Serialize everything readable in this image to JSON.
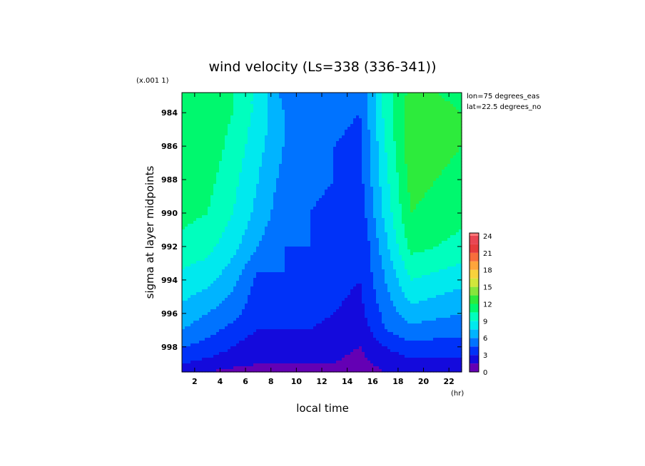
{
  "chart_data": {
    "type": "heatmap",
    "title": "wind velocity (Ls=338 (336-341))",
    "xlabel": "local time",
    "x_unit": "(hr)",
    "ylabel": "sigma at layer midpoints",
    "y_scale_note": "(x.001 1)",
    "annotations": [
      "lon=75 degrees_eas",
      "lat=22.5 degrees_no"
    ],
    "xlim": [
      1,
      23
    ],
    "ylim": [
      999.5,
      982.8
    ],
    "x_ticks": [
      "2",
      "4",
      "6",
      "8",
      "10",
      "12",
      "14",
      "16",
      "18",
      "20",
      "22"
    ],
    "y_ticks": [
      "984",
      "986",
      "988",
      "990",
      "992",
      "994",
      "996",
      "998"
    ],
    "x": [
      1,
      3,
      5,
      7,
      9,
      11,
      13,
      15,
      17,
      19,
      21,
      23
    ],
    "y": [
      982.8,
      984,
      986,
      988,
      990,
      992,
      994,
      996,
      997,
      998,
      999,
      999.5
    ],
    "z": [
      [
        12.0,
        11.5,
        10.5,
        8.5,
        5.5,
        5.5,
        5.0,
        4.5,
        9.5,
        12.5,
        12.0,
        11.5
      ],
      [
        12.0,
        11.5,
        10.5,
        8.5,
        6.0,
        5.5,
        5.0,
        4.5,
        9.5,
        13.0,
        12.5,
        12.0
      ],
      [
        12.0,
        11.5,
        10.0,
        8.0,
        6.0,
        5.0,
        4.5,
        4.0,
        9.0,
        13.0,
        12.5,
        12.0
      ],
      [
        11.5,
        11.0,
        9.5,
        7.5,
        5.5,
        5.0,
        4.5,
        4.0,
        8.5,
        12.5,
        12.0,
        11.5
      ],
      [
        11.0,
        10.5,
        9.0,
        7.0,
        5.0,
        4.5,
        4.0,
        3.5,
        8.0,
        12.0,
        11.5,
        11.0
      ],
      [
        10.0,
        9.5,
        8.0,
        6.0,
        4.5,
        4.5,
        3.5,
        3.0,
        7.0,
        11.0,
        10.5,
        10.0
      ],
      [
        8.5,
        8.0,
        6.5,
        4.0,
        4.5,
        4.0,
        3.5,
        3.0,
        6.0,
        9.0,
        8.5,
        8.0
      ],
      [
        7.0,
        6.0,
        5.0,
        3.5,
        3.5,
        3.5,
        3.0,
        2.5,
        5.0,
        7.0,
        6.5,
        6.0
      ],
      [
        6.0,
        5.0,
        4.0,
        3.0,
        3.0,
        3.0,
        2.5,
        2.0,
        4.5,
        5.5,
        5.0,
        5.0
      ],
      [
        4.5,
        4.0,
        3.0,
        2.0,
        2.5,
        2.5,
        2.0,
        1.5,
        3.0,
        4.0,
        4.0,
        4.0
      ],
      [
        3.0,
        2.5,
        2.0,
        1.5,
        1.5,
        1.5,
        1.5,
        1.0,
        2.0,
        2.5,
        2.5,
        2.5
      ],
      [
        2.0,
        1.5,
        1.0,
        0.8,
        1.0,
        1.0,
        1.0,
        0.8,
        1.5,
        1.5,
        1.5,
        1.5
      ]
    ],
    "colorbar": {
      "min": 0,
      "max": 24.5,
      "step": 1.5,
      "tick_labels": [
        "0",
        "3",
        "6",
        "9",
        "12",
        "15",
        "18",
        "21",
        "24"
      ]
    }
  }
}
